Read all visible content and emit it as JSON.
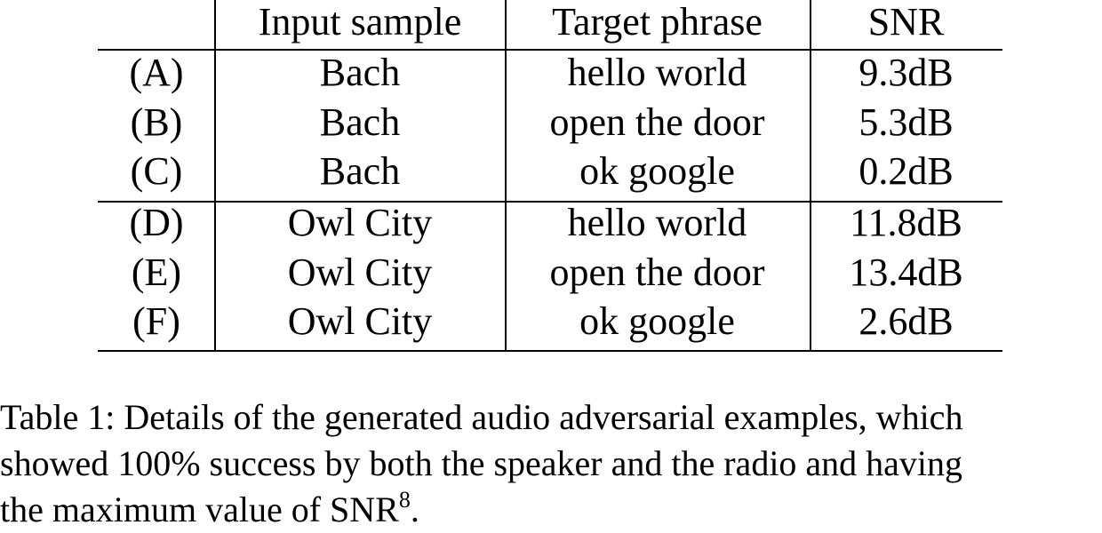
{
  "table": {
    "headers": [
      "",
      "Input sample",
      "Target phrase",
      "SNR"
    ],
    "rows": [
      [
        "(A)",
        "Bach",
        "hello world",
        "9.3dB"
      ],
      [
        "(B)",
        "Bach",
        "open the door",
        "5.3dB"
      ],
      [
        "(C)",
        "Bach",
        "ok google",
        "0.2dB"
      ],
      [
        "(D)",
        "Owl City",
        "hello world",
        "11.8dB"
      ],
      [
        "(E)",
        "Owl City",
        "open the door",
        "13.4dB"
      ],
      [
        "(F)",
        "Owl City",
        "ok google",
        "2.6dB"
      ]
    ]
  },
  "caption": {
    "line1": "Table 1: Details of the generated audio adversarial examples, which",
    "line2": "showed 100% success by both the speaker and the radio and having",
    "line3_text": "the maximum value of SNR",
    "line3_sup": "8",
    "line3_end": "."
  }
}
